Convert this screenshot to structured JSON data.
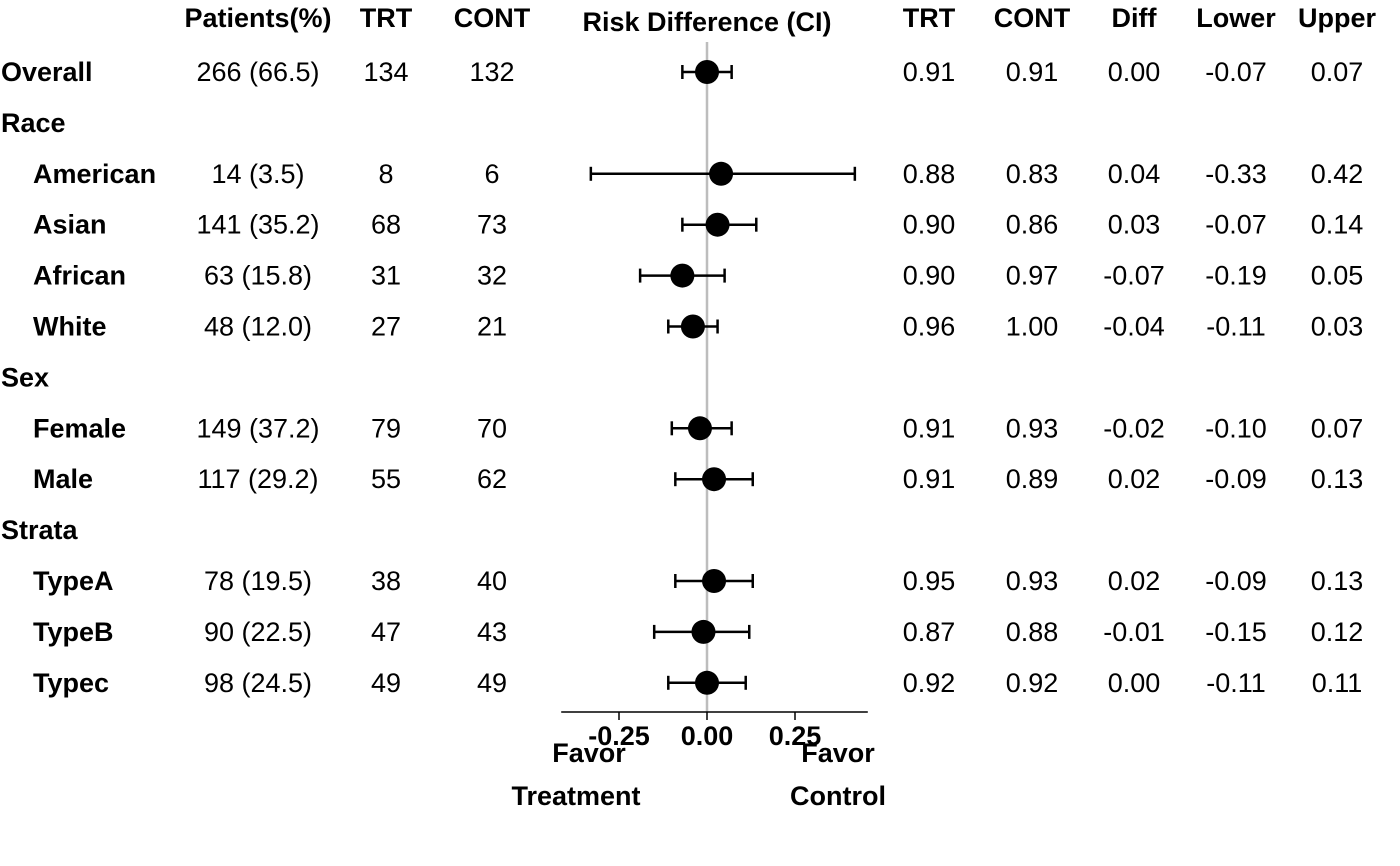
{
  "chart_data": {
    "type": "forest",
    "title": "Risk Difference (CI)",
    "columns": {
      "left": [
        "Patients(%)",
        "TRT",
        "CONT"
      ],
      "right": [
        "TRT",
        "CONT",
        "Diff",
        "Lower",
        "Upper"
      ]
    },
    "xlim": [
      -0.4,
      0.4
    ],
    "xticks": [
      -0.25,
      0.0,
      0.25
    ],
    "xtick_labels": [
      "-0.25",
      "0.00",
      "0.25"
    ],
    "reference_line": 0,
    "favor_left": [
      "Favor",
      "Treatment"
    ],
    "favor_right": [
      "Favor",
      "Control"
    ],
    "rows": [
      {
        "label": "Overall",
        "level": 0,
        "patients": "266 (66.5)",
        "trt_n": "134",
        "cont_n": "132",
        "trt": "0.91",
        "cont": "0.91",
        "diff_txt": "0.00",
        "lower_txt": "-0.07",
        "upper_txt": "0.07",
        "diff": 0.0,
        "lower": -0.07,
        "upper": 0.07
      },
      {
        "label": "Race",
        "level": 0
      },
      {
        "label": "American",
        "level": 1,
        "patients": "14 (3.5)",
        "trt_n": "8",
        "cont_n": "6",
        "trt": "0.88",
        "cont": "0.83",
        "diff_txt": "0.04",
        "lower_txt": "-0.33",
        "upper_txt": "0.42",
        "diff": 0.04,
        "lower": -0.33,
        "upper": 0.42
      },
      {
        "label": "Asian",
        "level": 1,
        "patients": "141 (35.2)",
        "trt_n": "68",
        "cont_n": "73",
        "trt": "0.90",
        "cont": "0.86",
        "diff_txt": "0.03",
        "lower_txt": "-0.07",
        "upper_txt": "0.14",
        "diff": 0.03,
        "lower": -0.07,
        "upper": 0.14
      },
      {
        "label": "African",
        "level": 1,
        "patients": "63 (15.8)",
        "trt_n": "31",
        "cont_n": "32",
        "trt": "0.90",
        "cont": "0.97",
        "diff_txt": "-0.07",
        "lower_txt": "-0.19",
        "upper_txt": "0.05",
        "diff": -0.07,
        "lower": -0.19,
        "upper": 0.05
      },
      {
        "label": "White",
        "level": 1,
        "patients": "48 (12.0)",
        "trt_n": "27",
        "cont_n": "21",
        "trt": "0.96",
        "cont": "1.00",
        "diff_txt": "-0.04",
        "lower_txt": "-0.11",
        "upper_txt": "0.03",
        "diff": -0.04,
        "lower": -0.11,
        "upper": 0.03
      },
      {
        "label": "Sex",
        "level": 0
      },
      {
        "label": "Female",
        "level": 1,
        "patients": "149 (37.2)",
        "trt_n": "79",
        "cont_n": "70",
        "trt": "0.91",
        "cont": "0.93",
        "diff_txt": "-0.02",
        "lower_txt": "-0.10",
        "upper_txt": "0.07",
        "diff": -0.02,
        "lower": -0.1,
        "upper": 0.07
      },
      {
        "label": "Male",
        "level": 1,
        "patients": "117 (29.2)",
        "trt_n": "55",
        "cont_n": "62",
        "trt": "0.91",
        "cont": "0.89",
        "diff_txt": "0.02",
        "lower_txt": "-0.09",
        "upper_txt": "0.13",
        "diff": 0.02,
        "lower": -0.09,
        "upper": 0.13
      },
      {
        "label": "Strata",
        "level": 0
      },
      {
        "label": "TypeA",
        "level": 1,
        "patients": "78 (19.5)",
        "trt_n": "38",
        "cont_n": "40",
        "trt": "0.95",
        "cont": "0.93",
        "diff_txt": "0.02",
        "lower_txt": "-0.09",
        "upper_txt": "0.13",
        "diff": 0.02,
        "lower": -0.09,
        "upper": 0.13
      },
      {
        "label": "TypeB",
        "level": 1,
        "patients": "90 (22.5)",
        "trt_n": "47",
        "cont_n": "43",
        "trt": "0.87",
        "cont": "0.88",
        "diff_txt": "-0.01",
        "lower_txt": "-0.15",
        "upper_txt": "0.12",
        "diff": -0.01,
        "lower": -0.15,
        "upper": 0.12
      },
      {
        "label": "Typec",
        "level": 1,
        "patients": "98 (24.5)",
        "trt_n": "49",
        "cont_n": "49",
        "trt": "0.92",
        "cont": "0.92",
        "diff_txt": "0.00",
        "lower_txt": "-0.11",
        "upper_txt": "0.11",
        "diff": 0.0,
        "lower": -0.11,
        "upper": 0.11
      }
    ],
    "colors": {
      "marker": "#000000",
      "ci": "#000000",
      "reference": "#bdbdbd",
      "axis": "#000000",
      "text": "#000000"
    }
  }
}
